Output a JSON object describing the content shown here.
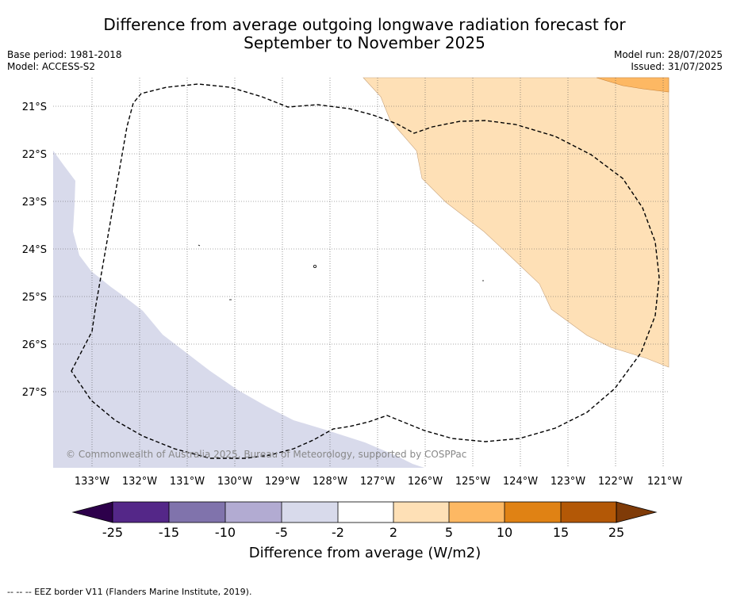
{
  "title_line1": "Difference from average outgoing longwave radiation forecast for",
  "title_line2": "September to November 2025",
  "base_period": "Base period: 1981-2018",
  "model": "Model: ACCESS-S2",
  "model_run": "Model run: 28/07/2025",
  "issued": "Issued: 31/07/2025",
  "copyright": "© Commonwealth of Australia 2025, Bureau of Meteorology, supported by COSPPac",
  "footnote": "--  --  -- EEZ border V11 (Flanders Marine Institute, 2019).",
  "map": {
    "lon_labels": [
      "133°W",
      "132°W",
      "131°W",
      "130°W",
      "129°W",
      "128°W",
      "127°W",
      "126°W",
      "125°W",
      "124°W",
      "123°W",
      "122°W",
      "121°W"
    ],
    "lat_labels": [
      "21°S",
      "22°S",
      "23°S",
      "24°S",
      "25°S",
      "26°S",
      "27°S"
    ]
  },
  "colorbar": {
    "title": "Difference from average (W/m2)",
    "ticks": [
      "-25",
      "-15",
      "-10",
      "-5",
      "-2",
      "2",
      "5",
      "10",
      "15",
      "25"
    ],
    "colors": [
      "#2d004b",
      "#542788",
      "#8073ac",
      "#b2abd2",
      "#d8daeb",
      "#ffffff",
      "#fee0b6",
      "#fdb863",
      "#e08214",
      "#b35806",
      "#7f3b08"
    ]
  },
  "colors": {
    "negative_region": "#d8daeb",
    "positive_region": "#fee0b6",
    "strong_positive_region": "#fdb863",
    "eez_border": "#000000"
  }
}
